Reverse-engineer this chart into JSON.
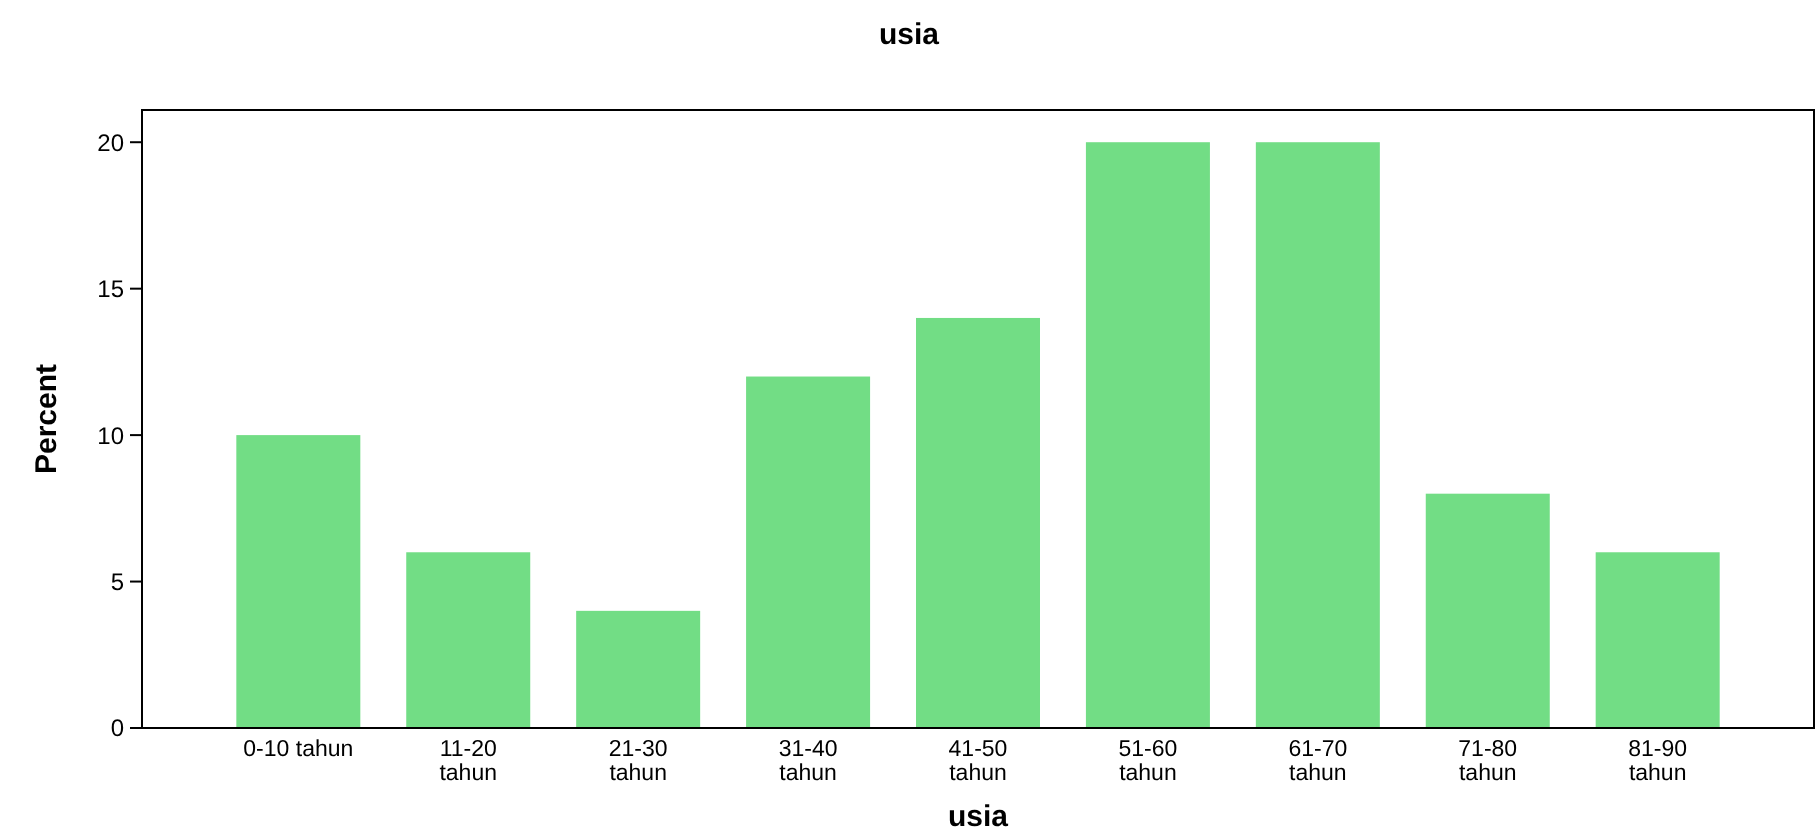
{
  "chart_data": {
    "type": "bar",
    "title": "usia",
    "xlabel": "usia",
    "ylabel": "Percent",
    "categories": [
      "0-10 tahun",
      "11-20 tahun",
      "21-30 tahun",
      "31-40 tahun",
      "41-50 tahun",
      "51-60 tahun",
      "61-70 tahun",
      "71-80 tahun",
      "81-90 tahun"
    ],
    "values": [
      10,
      6,
      4,
      12,
      14,
      20,
      20,
      8,
      6
    ],
    "color": "#72dd85",
    "ylim": [
      0,
      21.1
    ],
    "yticks": [
      0,
      5,
      10,
      15,
      20
    ],
    "grid": false
  }
}
